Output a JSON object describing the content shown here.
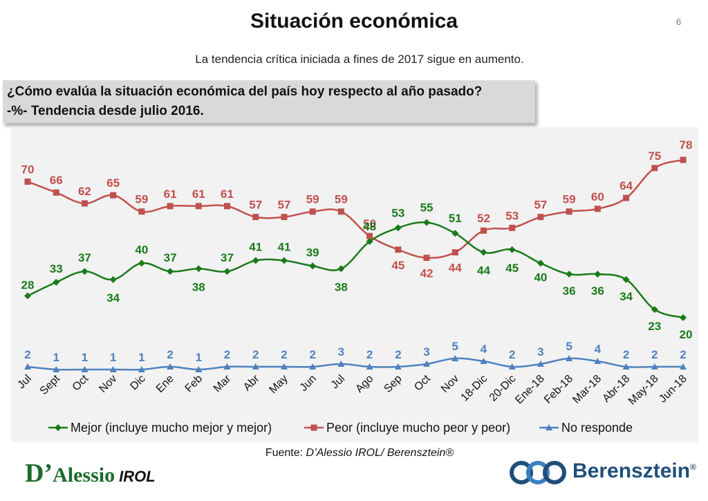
{
  "header": {
    "title": "Situación económica",
    "page_number": "6",
    "subtitle": "La tendencia crítica iniciada a fines de 2017 sigue en aumento."
  },
  "question": {
    "line1": "¿Cómo evalúa la situación económica del país hoy respecto al año pasado?",
    "line2": "-%- Tendencia desde julio 2016."
  },
  "chart_data": {
    "type": "line",
    "title": "¿Cómo evalúa la situación económica del país hoy respecto al año pasado?",
    "xlabel": "",
    "ylabel": "%",
    "ylim": [
      0,
      100
    ],
    "grid": false,
    "legend_position": "bottom",
    "categories": [
      "Jul",
      "Sept",
      "Oct",
      "Nov",
      "Dic",
      "Ene",
      "Feb",
      "Mar",
      "Abr",
      "May",
      "Jun",
      "Jul",
      "Ago",
      "Sep",
      "Oct",
      "Nov",
      "18-Dic",
      "20-Dic",
      "Ene-18",
      "Feb-18",
      "Mar-18",
      "Abr-18",
      "May-18",
      "Jun-18"
    ],
    "series": [
      {
        "name": "Mejor (incluye mucho mejor y mejor)",
        "color": "#1a7a1a",
        "marker": "diamond",
        "values": [
          28,
          33,
          37,
          34,
          40,
          37,
          38,
          37,
          41,
          41,
          39,
          38,
          48,
          53,
          55,
          51,
          44,
          45,
          40,
          36,
          36,
          34,
          23,
          20
        ]
      },
      {
        "name": "Peor (incluye mucho peor y peor)",
        "color": "#c0504d",
        "marker": "square",
        "values": [
          70,
          66,
          62,
          65,
          59,
          61,
          61,
          61,
          57,
          57,
          59,
          59,
          50,
          45,
          42,
          44,
          52,
          53,
          57,
          59,
          60,
          64,
          75,
          78
        ]
      },
      {
        "name": "No responde",
        "color": "#4f81bd",
        "marker": "triangle",
        "values": [
          2,
          1,
          1,
          1,
          1,
          2,
          1,
          2,
          2,
          2,
          2,
          3,
          2,
          2,
          3,
          5,
          4,
          2,
          3,
          5,
          4,
          2,
          2,
          2
        ]
      }
    ]
  },
  "footer": {
    "source_prefix": "Fuente: ",
    "source_italic": "D’Alessio IROL/ Berensztein®",
    "brand_left_initial": "D’",
    "brand_left_rest": "Alessio",
    "brand_left_suffix": "IROL",
    "brand_right": "Berensztein"
  }
}
